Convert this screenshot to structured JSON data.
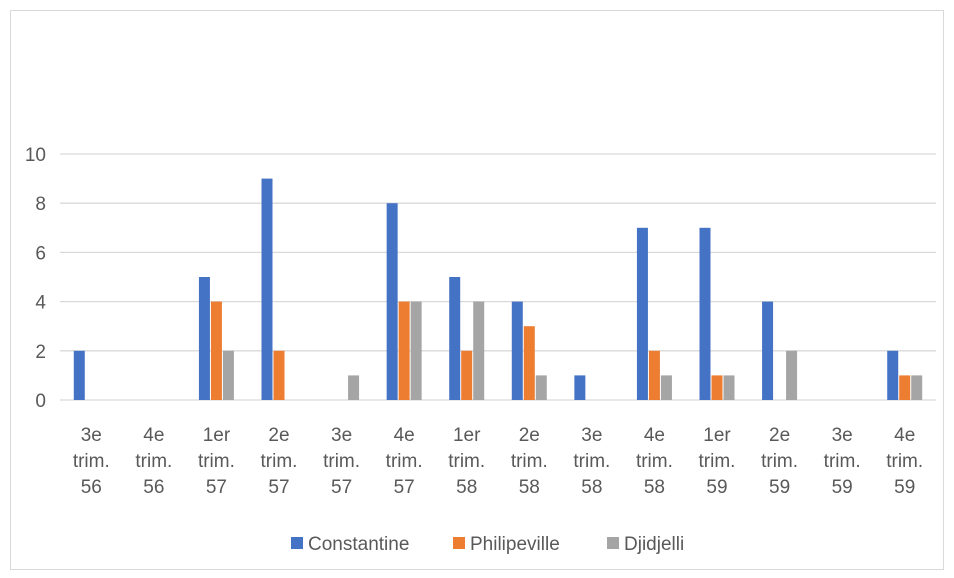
{
  "chart_data": {
    "type": "bar",
    "title": "",
    "xlabel": "",
    "ylabel": "",
    "ylim": [
      0,
      10
    ],
    "yticks": [
      0,
      2,
      4,
      6,
      8,
      10
    ],
    "grid": true,
    "legend_position": "bottom",
    "categories": [
      [
        "3e",
        "trim.",
        "56"
      ],
      [
        "4e",
        "trim.",
        "56"
      ],
      [
        "1er",
        "trim.",
        "57"
      ],
      [
        "2e",
        "trim.",
        "57"
      ],
      [
        "3e",
        "trim.",
        "57"
      ],
      [
        "4e",
        "trim.",
        "57"
      ],
      [
        "1er",
        "trim.",
        "58"
      ],
      [
        "2e",
        "trim.",
        "58"
      ],
      [
        "3e",
        "trim.",
        "58"
      ],
      [
        "4e",
        "trim.",
        "58"
      ],
      [
        "1er",
        "trim.",
        "59"
      ],
      [
        "2e",
        "trim.",
        "59"
      ],
      [
        "3e",
        "trim.",
        "59"
      ],
      [
        "4e",
        "trim.",
        "59"
      ]
    ],
    "series": [
      {
        "name": "Constantine",
        "color": "#4472C4",
        "values": [
          2,
          0,
          5,
          9,
          0,
          8,
          5,
          4,
          1,
          7,
          7,
          4,
          0,
          2
        ]
      },
      {
        "name": "Philipeville",
        "color": "#ED7D31",
        "values": [
          0,
          0,
          4,
          2,
          0,
          4,
          2,
          3,
          0,
          2,
          1,
          0,
          0,
          1
        ]
      },
      {
        "name": "Djidjelli",
        "color": "#A5A5A5",
        "values": [
          0,
          0,
          2,
          0,
          1,
          4,
          4,
          1,
          0,
          1,
          1,
          2,
          0,
          1
        ]
      }
    ]
  }
}
